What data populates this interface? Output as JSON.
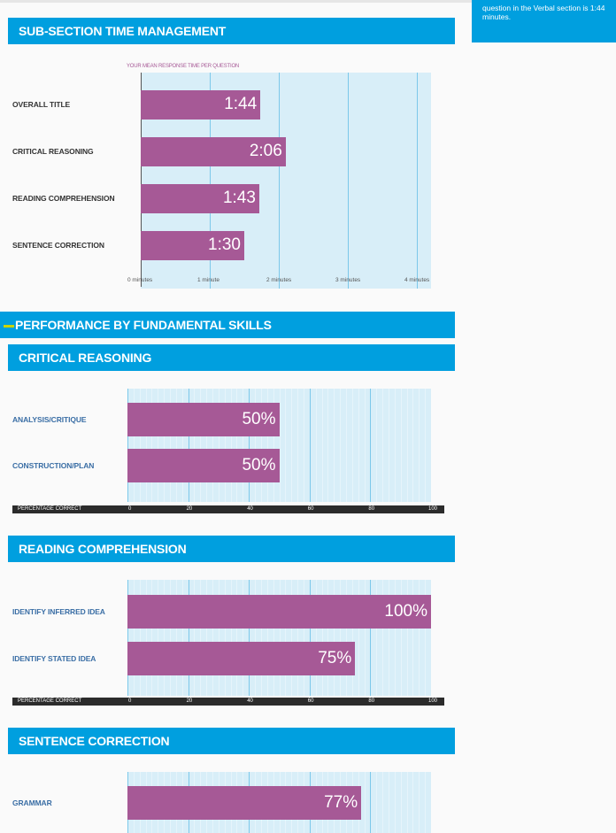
{
  "sidenote": "question in the Verbal section is 1:44 minutes.",
  "headers": {
    "time": "SUB-SECTION TIME MANAGEMENT",
    "performance": "PERFORMANCE BY FUNDAMENTAL SKILLS",
    "cr": "CRITICAL REASONING",
    "rc": "READING COMPREHENSION",
    "sc": "SENTENCE CORRECTION"
  },
  "colors": {
    "accent": "#009fdf",
    "bar": "#a65996",
    "plot_bg": "#d8eef8",
    "gridline": "#7cc8ea",
    "highlight": "#c8d400"
  },
  "chart_data": [
    {
      "type": "bar",
      "orientation": "horizontal",
      "title": "YOUR MEAN RESPONSE TIME PER QUESTION",
      "categories": [
        "OVERALL TITLE",
        "CRITICAL REASONING",
        "READING COMPREHENSION",
        "SENTENCE CORRECTION"
      ],
      "values": [
        1.733,
        2.1,
        1.717,
        1.5
      ],
      "labels": [
        "1:44",
        "2:06",
        "1:43",
        "1:30"
      ],
      "xlim": [
        0,
        4
      ],
      "xticks": [
        0,
        1,
        2,
        3,
        4
      ],
      "xtick_labels": [
        "0 minutes",
        "1 minute",
        "2 minutes",
        "3 minutes",
        "4 minutes"
      ]
    },
    {
      "type": "bar",
      "orientation": "horizontal",
      "categories": [
        "ANALYSIS/CRITIQUE",
        "CONSTRUCTION/PLAN"
      ],
      "values": [
        50,
        50
      ],
      "labels": [
        "50%",
        "50%"
      ],
      "xlim": [
        0,
        100
      ],
      "xticks": [
        0,
        20,
        40,
        60,
        80,
        100
      ],
      "xlabel": "PERCENTAGE CORRECT"
    },
    {
      "type": "bar",
      "orientation": "horizontal",
      "categories": [
        "IDENTIFY INFERRED IDEA",
        "IDENTIFY STATED IDEA"
      ],
      "values": [
        100,
        75
      ],
      "labels": [
        "100%",
        "75%"
      ],
      "xlim": [
        0,
        100
      ],
      "xticks": [
        0,
        20,
        40,
        60,
        80,
        100
      ],
      "xlabel": "PERCENTAGE CORRECT"
    },
    {
      "type": "bar",
      "orientation": "horizontal",
      "categories": [
        "GRAMMAR"
      ],
      "values": [
        77
      ],
      "labels": [
        "77%"
      ],
      "xlim": [
        0,
        100
      ],
      "xticks": [
        0,
        20,
        40,
        60,
        80,
        100
      ]
    }
  ]
}
